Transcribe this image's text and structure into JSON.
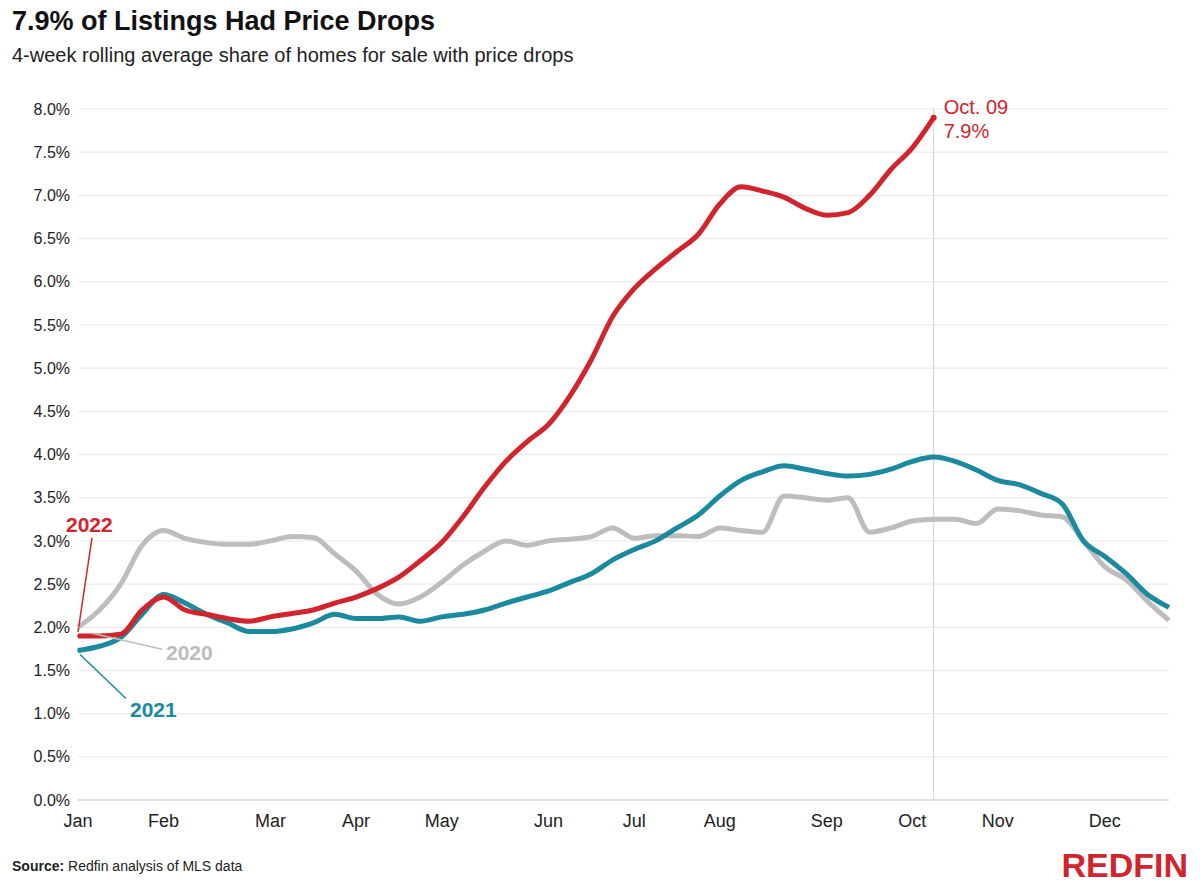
{
  "chart_data": {
    "type": "line",
    "title": "7.9% of Listings Had Price Drops",
    "subtitle": "4-week rolling average share of homes for sale with price drops",
    "source": {
      "label": "Source:",
      "text": "Redfin analysis of MLS data"
    },
    "logo": "REDFIN",
    "categories": [
      "Jan",
      null,
      null,
      null,
      "Feb",
      null,
      null,
      null,
      null,
      "Mar",
      null,
      null,
      null,
      "Apr",
      null,
      null,
      null,
      "May",
      null,
      null,
      null,
      null,
      "Jun",
      null,
      null,
      null,
      "Jul",
      null,
      null,
      null,
      "Aug",
      null,
      null,
      null,
      null,
      "Sep",
      null,
      null,
      null,
      "Oct",
      null,
      null,
      null,
      "Nov",
      null,
      null,
      null,
      null,
      "Dec",
      null,
      null,
      null
    ],
    "series": [
      {
        "name": "2022",
        "color": "#d0252d",
        "values": [
          1.9,
          1.9,
          1.92,
          2.2,
          2.35,
          2.2,
          2.15,
          2.1,
          2.07,
          2.12,
          2.16,
          2.2,
          2.28,
          2.35,
          2.45,
          2.58,
          2.77,
          2.98,
          3.28,
          3.62,
          3.92,
          4.15,
          4.35,
          4.68,
          5.1,
          5.6,
          5.92,
          6.15,
          6.35,
          6.55,
          6.9,
          7.1,
          7.05,
          6.98,
          6.85,
          6.77,
          6.8,
          7.0,
          7.3,
          7.55,
          7.9,
          null,
          null,
          null,
          null,
          null,
          null,
          null,
          null,
          null,
          null,
          null
        ],
        "annotation": {
          "text": "Oct. 09",
          "label": "7.9%",
          "value": 7.9
        }
      },
      {
        "name": "2021",
        "color": "#1b8a9e",
        "values": [
          1.73,
          1.78,
          1.88,
          2.15,
          2.38,
          2.28,
          2.15,
          2.05,
          1.95,
          1.95,
          1.98,
          2.05,
          2.15,
          2.1,
          2.1,
          2.12,
          2.07,
          2.12,
          2.15,
          2.2,
          2.28,
          2.35,
          2.42,
          2.52,
          2.62,
          2.78,
          2.9,
          3.0,
          3.15,
          3.3,
          3.52,
          3.7,
          3.8,
          3.87,
          3.83,
          3.78,
          3.75,
          3.77,
          3.83,
          3.92,
          3.97,
          3.92,
          3.82,
          3.7,
          3.65,
          3.55,
          3.43,
          3.0,
          2.82,
          2.62,
          2.38,
          2.23
        ]
      },
      {
        "name": "2020",
        "color": "#bdbdbd",
        "values": [
          2.0,
          2.2,
          2.5,
          2.95,
          3.12,
          3.03,
          2.98,
          2.96,
          2.96,
          3.0,
          3.05,
          3.04,
          2.85,
          2.65,
          2.38,
          2.27,
          2.35,
          2.52,
          2.72,
          2.88,
          3.0,
          2.95,
          3.0,
          3.02,
          3.05,
          3.15,
          3.03,
          3.06,
          3.06,
          3.05,
          3.15,
          3.12,
          3.1,
          3.52,
          3.5,
          3.47,
          3.5,
          3.1,
          3.15,
          3.23,
          3.25,
          3.25,
          3.2,
          3.37,
          3.35,
          3.3,
          3.28,
          3.0,
          2.7,
          2.55,
          2.3,
          2.08
        ]
      }
    ],
    "ylim": [
      0,
      8
    ],
    "yticks": [
      {
        "value": 0,
        "label": "0.0%"
      },
      {
        "value": 0.5,
        "label": "0.5%"
      },
      {
        "value": 1,
        "label": "1.0%"
      },
      {
        "value": 1.5,
        "label": "1.5%"
      },
      {
        "value": 2,
        "label": "2.0%"
      },
      {
        "value": 2.5,
        "label": "2.5%"
      },
      {
        "value": 3,
        "label": "3.0%"
      },
      {
        "value": 3.5,
        "label": "3.5%"
      },
      {
        "value": 4,
        "label": "4.0%"
      },
      {
        "value": 4.5,
        "label": "4.5%"
      },
      {
        "value": 5,
        "label": "5.0%"
      },
      {
        "value": 5.5,
        "label": "5.5%"
      },
      {
        "value": 6,
        "label": "6.0%"
      },
      {
        "value": 6.5,
        "label": "6.5%"
      },
      {
        "value": 7,
        "label": "7.0%"
      },
      {
        "value": 7.5,
        "label": "7.5%"
      },
      {
        "value": 8,
        "label": "8.0%"
      }
    ],
    "grid": true
  }
}
